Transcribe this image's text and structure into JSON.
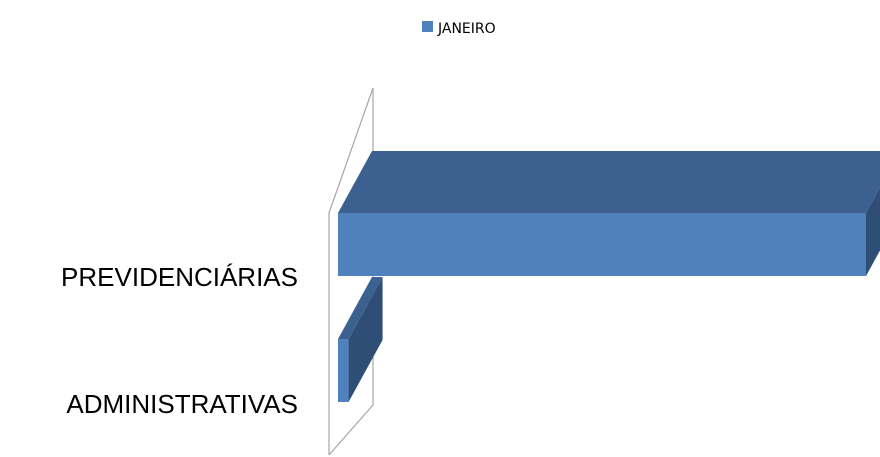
{
  "chart_data": {
    "type": "bar",
    "orientation": "horizontal",
    "three_d": true,
    "categories": [
      "PREVIDENCIÁRIAS",
      "ADMINISTRATIVAS"
    ],
    "series": [
      {
        "name": "JANEIRO",
        "values": [
          100,
          2
        ],
        "color": "#4f81bd"
      }
    ],
    "title": "",
    "xlabel": "",
    "ylabel": "",
    "xlim": [
      0,
      100
    ],
    "grid": false,
    "legend": "top-center",
    "axis_labels_visible": false
  },
  "colors": {
    "bar_front": "#4f81bd",
    "bar_top": "#3c6190",
    "bar_side": "#2f4e75",
    "wall": "#a6a6a6"
  }
}
